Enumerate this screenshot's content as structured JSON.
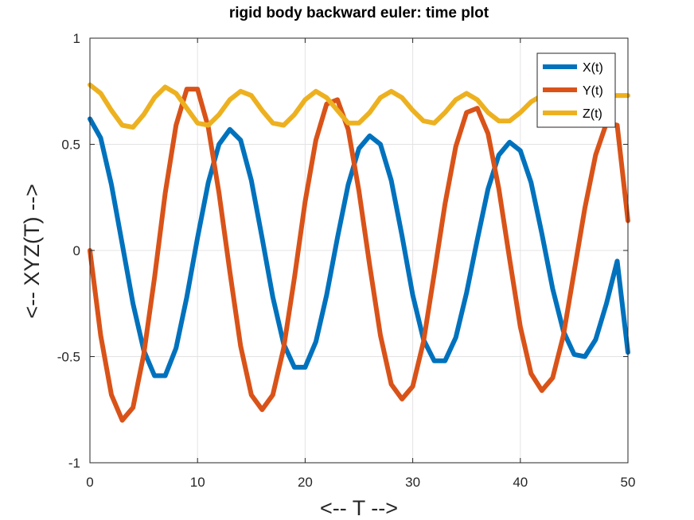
{
  "chart_data": {
    "type": "line",
    "title": "rigid body backward euler: time plot",
    "xlabel": "<-- T -->",
    "ylabel": "<-- XYZ(T) -->",
    "xlim": [
      0,
      50
    ],
    "ylim": [
      -1,
      1
    ],
    "xticks": [
      0,
      10,
      20,
      30,
      40,
      50
    ],
    "xtick_labels": [
      "0",
      "10",
      "20",
      "30",
      "40",
      "50"
    ],
    "yticks": [
      -1,
      -0.5,
      0,
      0.5,
      1
    ],
    "ytick_labels": [
      "-1",
      "-0.5",
      "0",
      "0.5",
      "1"
    ],
    "grid": true,
    "legend_location": "top-right",
    "series": [
      {
        "name": "X(t)",
        "color": "#0072bd",
        "x": [
          0,
          1,
          2,
          3,
          4,
          5,
          6,
          7,
          8,
          9,
          10,
          11,
          12,
          13,
          14,
          15,
          16,
          17,
          18,
          19,
          20,
          21,
          22,
          23,
          24,
          25,
          26,
          27,
          28,
          29,
          30,
          31,
          32,
          33,
          34,
          35,
          36,
          37,
          38,
          39,
          40,
          41,
          42,
          43,
          44,
          45,
          46,
          47,
          48,
          49,
          50
        ],
        "y": [
          0.62,
          0.53,
          0.31,
          0.03,
          -0.25,
          -0.47,
          -0.59,
          -0.59,
          -0.46,
          -0.22,
          0.06,
          0.32,
          0.5,
          0.57,
          0.52,
          0.33,
          0.06,
          -0.22,
          -0.44,
          -0.55,
          -0.55,
          -0.43,
          -0.21,
          0.06,
          0.31,
          0.48,
          0.54,
          0.5,
          0.33,
          0.07,
          -0.21,
          -0.42,
          -0.52,
          -0.52,
          -0.41,
          -0.2,
          0.05,
          0.29,
          0.45,
          0.51,
          0.47,
          0.32,
          0.08,
          -0.18,
          -0.38,
          -0.49,
          -0.5,
          -0.42,
          -0.25,
          -0.05,
          -0.48
        ]
      },
      {
        "name": "Y(t)",
        "color": "#d95319",
        "x": [
          0,
          1,
          2,
          3,
          4,
          5,
          6,
          7,
          8,
          9,
          10,
          11,
          12,
          13,
          14,
          15,
          16,
          17,
          18,
          19,
          20,
          21,
          22,
          23,
          24,
          25,
          26,
          27,
          28,
          29,
          30,
          31,
          32,
          33,
          34,
          35,
          36,
          37,
          38,
          39,
          40,
          41,
          42,
          43,
          44,
          45,
          46,
          47,
          48,
          49,
          50
        ],
        "y": [
          0.0,
          -0.4,
          -0.68,
          -0.8,
          -0.74,
          -0.49,
          -0.13,
          0.27,
          0.59,
          0.76,
          0.76,
          0.58,
          0.27,
          -0.1,
          -0.45,
          -0.68,
          -0.75,
          -0.68,
          -0.46,
          -0.13,
          0.23,
          0.52,
          0.69,
          0.71,
          0.57,
          0.28,
          -0.07,
          -0.4,
          -0.63,
          -0.7,
          -0.64,
          -0.43,
          -0.11,
          0.22,
          0.49,
          0.65,
          0.67,
          0.55,
          0.29,
          -0.04,
          -0.36,
          -0.58,
          -0.66,
          -0.6,
          -0.4,
          -0.1,
          0.2,
          0.45,
          0.6,
          0.59,
          0.14
        ]
      },
      {
        "name": "Z(t)",
        "color": "#edb120",
        "x": [
          0,
          1,
          2,
          3,
          4,
          5,
          6,
          7,
          8,
          9,
          10,
          11,
          12,
          13,
          14,
          15,
          16,
          17,
          18,
          19,
          20,
          21,
          22,
          23,
          24,
          25,
          26,
          27,
          28,
          29,
          30,
          31,
          32,
          33,
          34,
          35,
          36,
          37,
          38,
          39,
          40,
          41,
          42,
          43,
          44,
          45,
          46,
          47,
          48,
          49,
          50
        ],
        "y": [
          0.78,
          0.74,
          0.66,
          0.59,
          0.58,
          0.64,
          0.72,
          0.77,
          0.74,
          0.67,
          0.6,
          0.59,
          0.64,
          0.71,
          0.75,
          0.73,
          0.66,
          0.6,
          0.59,
          0.64,
          0.71,
          0.75,
          0.72,
          0.66,
          0.6,
          0.6,
          0.65,
          0.72,
          0.75,
          0.72,
          0.66,
          0.61,
          0.6,
          0.65,
          0.71,
          0.74,
          0.71,
          0.65,
          0.61,
          0.61,
          0.65,
          0.7,
          0.73,
          0.73,
          0.71,
          0.7,
          0.72,
          0.73,
          0.73,
          0.73,
          0.73
        ]
      }
    ]
  }
}
